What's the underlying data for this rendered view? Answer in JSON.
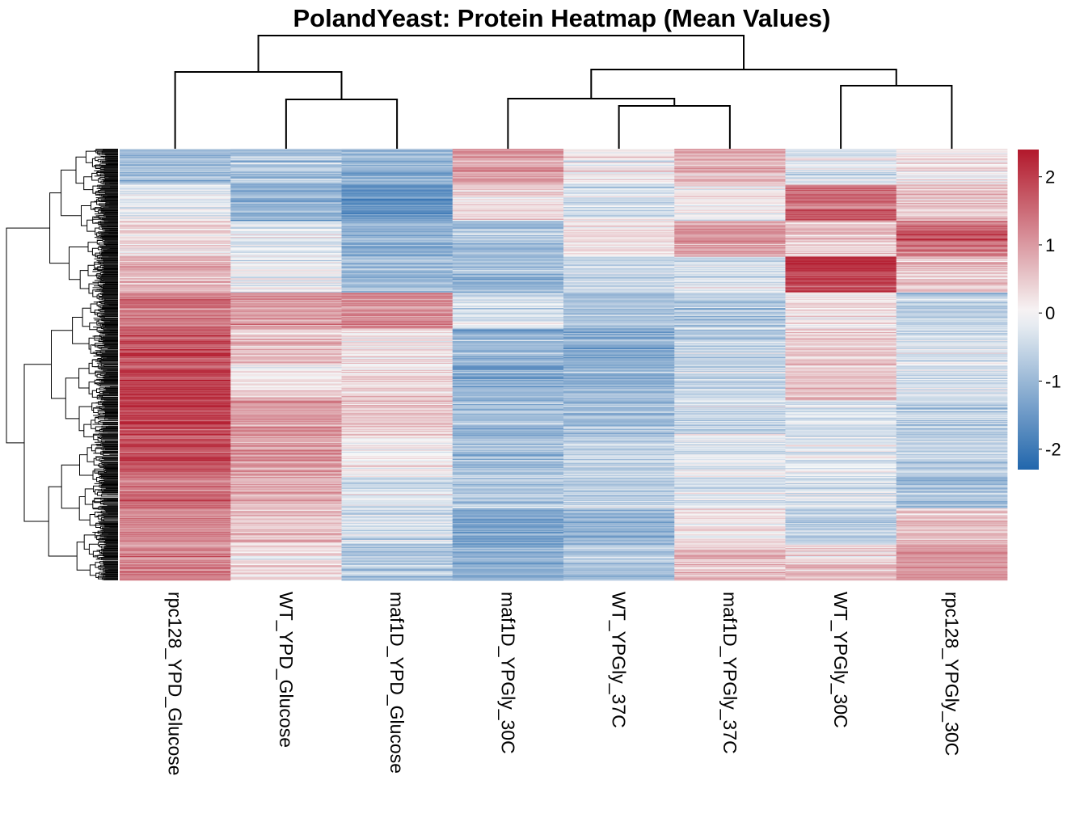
{
  "chart_data": {
    "type": "heatmap",
    "title": "PolandYeast: Protein Heatmap (Mean Values)",
    "columns": [
      "rpc128_YPD_Glucose",
      "WT_YPD_Glucose",
      "maf1D_YPD_Glucose",
      "maf1D_YPGly_30C",
      "WT_YPGly_37C",
      "maf1D_YPGly_37C",
      "WT_YPGly_30C",
      "rpc128_YPGly_30C"
    ],
    "row_count": 480,
    "row_labels_shown": false,
    "column_dendrogram": true,
    "row_dendrogram": true,
    "color_scale": {
      "min": -2.3,
      "max": 2.4,
      "ticks": [
        -2,
        -1,
        0,
        1,
        2
      ],
      "low_color": "#2166ac",
      "mid_color": "#f7f7f7",
      "high_color": "#b2182b"
    },
    "column_means_by_row_block": {
      "row_blocks": [
        "block1",
        "block2",
        "block3",
        "block4",
        "block5",
        "block6",
        "block7",
        "block8",
        "block9",
        "block10",
        "block11",
        "block12"
      ],
      "values": [
        [
          -0.9,
          -0.8,
          -1.1,
          1.0,
          0.1,
          0.8,
          -0.3,
          0.2
        ],
        [
          -0.2,
          -1.1,
          -1.4,
          0.3,
          -0.4,
          0.2,
          1.6,
          0.6
        ],
        [
          0.3,
          -0.3,
          -1.2,
          -0.9,
          0.2,
          1.0,
          0.4,
          1.5
        ],
        [
          0.7,
          -0.2,
          -1.0,
          -1.0,
          -0.5,
          -0.3,
          2.0,
          0.5
        ],
        [
          1.3,
          1.0,
          1.2,
          -0.4,
          -0.9,
          -0.8,
          0.2,
          -0.6
        ],
        [
          1.8,
          0.6,
          0.2,
          -1.1,
          -1.2,
          -0.6,
          0.5,
          -0.4
        ],
        [
          2.0,
          0.3,
          0.4,
          -1.2,
          -1.0,
          -0.5,
          0.6,
          -0.3
        ],
        [
          1.9,
          1.1,
          0.5,
          -1.0,
          -0.9,
          -0.4,
          -0.4,
          -0.6
        ],
        [
          1.8,
          1.0,
          0.1,
          -0.9,
          -0.6,
          -0.2,
          -0.2,
          -0.5
        ],
        [
          1.5,
          0.8,
          -0.3,
          -0.7,
          -0.6,
          -0.2,
          -0.3,
          -0.8
        ],
        [
          1.2,
          0.5,
          -0.4,
          -1.3,
          -1.1,
          0.2,
          -0.6,
          0.6
        ],
        [
          1.2,
          0.3,
          -0.8,
          -1.1,
          -0.8,
          0.5,
          0.4,
          1.0
        ]
      ]
    }
  }
}
